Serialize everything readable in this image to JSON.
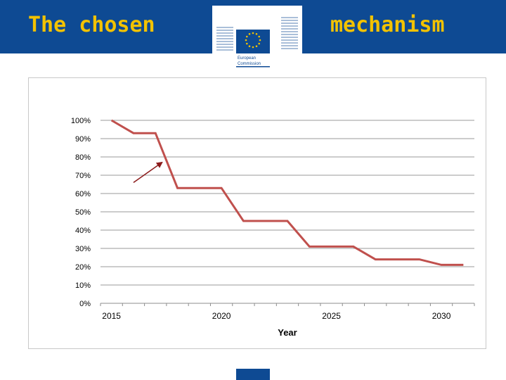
{
  "header": {
    "title_left": "The chosen",
    "title_right": "mechanism",
    "logo_text_line1": "European",
    "logo_text_line2": "Commission"
  },
  "colors": {
    "header_bg": "#0e4a93",
    "title_text": "#f2c200",
    "series_line": "#c0504d",
    "arrow": "#8b1a1a"
  },
  "chart_data": {
    "type": "line",
    "title": "",
    "xlabel": "Year",
    "ylabel": "",
    "xlim": [
      2014.5,
      2031.5
    ],
    "ylim": [
      0,
      100
    ],
    "x_ticks": [
      2015,
      2020,
      2025,
      2030
    ],
    "y_ticks": [
      0,
      10,
      20,
      30,
      40,
      50,
      60,
      70,
      80,
      90,
      100
    ],
    "y_tick_labels": [
      "0%",
      "10%",
      "20%",
      "30%",
      "40%",
      "50%",
      "60%",
      "70%",
      "80%",
      "90%",
      "100%"
    ],
    "grid": "horizontal",
    "legend": "none",
    "series": [
      {
        "x": [
          2015,
          2016,
          2017,
          2018,
          2019,
          2020,
          2021,
          2022,
          2023,
          2024,
          2025,
          2026,
          2027,
          2028,
          2029,
          2030,
          2031
        ],
        "values": [
          100,
          93,
          93,
          63,
          63,
          63,
          45,
          45,
          45,
          31,
          31,
          31,
          24,
          24,
          24,
          21,
          21
        ]
      }
    ],
    "annotations": [
      {
        "type": "arrow",
        "from": [
          2016.0,
          66
        ],
        "to": [
          2017.3,
          77
        ]
      }
    ]
  }
}
